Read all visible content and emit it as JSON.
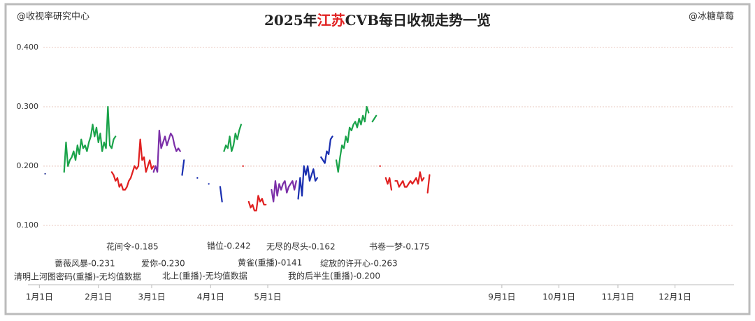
{
  "chart_data": {
    "type": "line",
    "header_left": "@收视率研究中心",
    "header_right": "@冰糖草莓",
    "title": [
      "2025年",
      "江苏",
      "CVB每日收视走势一览"
    ],
    "title_color": "#222222",
    "title_highlight_color": "#e02020",
    "xlim": [
      -6,
      365
    ],
    "xticks": [
      {
        "value": 0,
        "label": "1月1日"
      },
      {
        "value": 31,
        "label": "2月1日"
      },
      {
        "value": 59,
        "label": "3月1日"
      },
      {
        "value": 90,
        "label": "4月1日"
      },
      {
        "value": 120,
        "label": "5月1日"
      },
      {
        "value": 243,
        "label": "9月1日"
      },
      {
        "value": 273,
        "label": "10月1日"
      },
      {
        "value": 304,
        "label": "11月1日"
      },
      {
        "value": 334,
        "label": "12月1日"
      }
    ],
    "ylim": [
      0,
      0.4
    ],
    "yticks": [
      {
        "value": 0.1,
        "label": "0.100"
      },
      {
        "value": 0.2,
        "label": "0.200"
      },
      {
        "value": 0.3,
        "label": "0.300"
      },
      {
        "value": 0.4,
        "label": "0.400"
      }
    ],
    "grid": true,
    "series": [
      {
        "color": "#10208a",
        "x": [
          3
        ],
        "values": [
          0.187
        ]
      },
      {
        "color": "#1aa34a",
        "x": [
          13,
          14,
          15,
          16,
          17,
          18,
          19,
          20,
          21,
          22,
          23,
          24,
          25,
          26,
          27,
          28,
          29,
          30,
          31,
          32,
          33,
          34,
          35,
          36,
          37,
          38,
          39,
          40
        ],
        "values": [
          0.19,
          0.24,
          0.2,
          0.21,
          0.215,
          0.225,
          0.21,
          0.235,
          0.22,
          0.245,
          0.23,
          0.235,
          0.225,
          0.24,
          0.25,
          0.27,
          0.25,
          0.265,
          0.24,
          0.255,
          0.225,
          0.24,
          0.23,
          0.3,
          0.235,
          0.23,
          0.245,
          0.25
        ]
      },
      {
        "color": "#e02020",
        "x": [
          38,
          39,
          40,
          41,
          42,
          43,
          44,
          45,
          46,
          47,
          48,
          49,
          50,
          51,
          52,
          53,
          54,
          55,
          56,
          57,
          58,
          59,
          60
        ],
        "values": [
          0.19,
          0.185,
          0.175,
          0.18,
          0.165,
          0.17,
          0.16,
          0.16,
          0.165,
          0.175,
          0.18,
          0.19,
          0.2,
          0.195,
          0.2,
          0.245,
          0.21,
          0.215,
          0.19,
          0.2,
          0.21,
          0.195,
          0.2
        ]
      },
      {
        "color": "#7b2fa8",
        "x": [
          60,
          61,
          62,
          63,
          64,
          65,
          66,
          67,
          68,
          69,
          70,
          71,
          72,
          73,
          74
        ],
        "values": [
          0.19,
          0.2,
          0.19,
          0.26,
          0.23,
          0.24,
          0.25,
          0.235,
          0.245,
          0.255,
          0.25,
          0.235,
          0.225,
          0.23,
          0.225
        ]
      },
      {
        "color": "#1a2fb0",
        "x": [
          75,
          76,
          80,
          83,
          86,
          89,
          92,
          95,
          96
        ],
        "values": [
          0.185,
          0.21,
          null,
          0.18,
          null,
          0.17,
          null,
          0.165,
          0.14
        ]
      },
      {
        "color": "#1aa34a",
        "x": [
          97,
          98,
          99,
          100,
          101,
          102,
          103,
          104,
          105,
          106
        ],
        "values": [
          0.225,
          0.235,
          0.23,
          0.25,
          0.225,
          0.235,
          0.255,
          0.245,
          0.26,
          0.27
        ]
      },
      {
        "color": "#e02020",
        "x": [
          107,
          109,
          110,
          111,
          112,
          113,
          114,
          115,
          116,
          117,
          118,
          119
        ],
        "values": [
          0.2,
          null,
          0.14,
          0.13,
          0.135,
          0.125,
          0.125,
          0.15,
          0.14,
          0.145,
          0.135,
          0.135
        ]
      },
      {
        "color": "#7b2fa8",
        "x": [
          122,
          123,
          124,
          125,
          126,
          127,
          128,
          129,
          130,
          131,
          132,
          133,
          134,
          135
        ],
        "values": [
          0.16,
          0.14,
          0.175,
          0.15,
          0.17,
          0.16,
          0.17,
          0.175,
          0.155,
          0.165,
          0.17,
          0.175,
          0.16,
          0.175
        ]
      },
      {
        "color": "#1a2fb0",
        "x": [
          136,
          137,
          138,
          139,
          140,
          141,
          142,
          143,
          144,
          145,
          146,
          147,
          148,
          149,
          150,
          151,
          152,
          153,
          154
        ],
        "values": [
          0.145,
          0.18,
          0.15,
          0.2,
          0.185,
          0.2,
          0.175,
          0.185,
          0.195,
          0.175,
          0.18,
          null,
          0.215,
          0.21,
          0.205,
          0.225,
          0.22,
          0.245,
          0.25
        ]
      },
      {
        "color": "#1aa34a",
        "x": [
          156,
          157,
          158,
          159,
          160,
          161,
          162,
          163,
          164,
          165,
          166,
          167,
          168,
          169,
          170,
          171,
          172,
          173,
          174,
          175,
          176,
          177
        ],
        "values": [
          0.21,
          0.19,
          0.215,
          0.235,
          0.23,
          0.25,
          0.24,
          0.265,
          0.26,
          0.27,
          0.275,
          0.265,
          0.28,
          0.27,
          0.285,
          0.275,
          0.3,
          0.29,
          null,
          0.275,
          0.28,
          0.285
        ]
      },
      {
        "color": "#e02020",
        "x": [
          179,
          180,
          181,
          182,
          183,
          184,
          185,
          186,
          187,
          188,
          189,
          190,
          191,
          192,
          193,
          194,
          195,
          196,
          197,
          198,
          199,
          200,
          201,
          202,
          203,
          204,
          205
        ],
        "values": [
          0.2,
          null,
          null,
          0.18,
          0.17,
          0.18,
          0.16,
          null,
          0.175,
          0.175,
          0.165,
          0.17,
          0.175,
          0.165,
          0.165,
          0.17,
          0.175,
          0.17,
          0.175,
          0.18,
          0.17,
          0.19,
          0.175,
          0.18,
          null,
          0.155,
          0.185
        ]
      }
    ],
    "annotations": [
      {
        "text": "花间令-0.185",
        "color": "#e02020"
      },
      {
        "text": "错位-0.242",
        "color": "#1aa34a"
      },
      {
        "text": "无尽的尽头-0.162",
        "color": "#7b2fa8"
      },
      {
        "text": "书卷一梦-0.175",
        "color": "#e02020"
      },
      {
        "text": "蔷薇风暴-0.231",
        "color": "#1aa34a"
      },
      {
        "text": "爱你-0.230",
        "color": "#7b2fa8"
      },
      {
        "text": "黄雀(重播)-0141",
        "color": "#e02020"
      },
      {
        "text": "绽放的许开心-0.263",
        "color": "#1aa34a"
      },
      {
        "text": "清明上河图密码(重播)-无均值数据",
        "color": "#10208a"
      },
      {
        "text": "北上(重播)-无均值数据",
        "color": "#10208a"
      },
      {
        "text": "我的后半生(重播)-0.200",
        "color": "#10208a"
      }
    ]
  }
}
